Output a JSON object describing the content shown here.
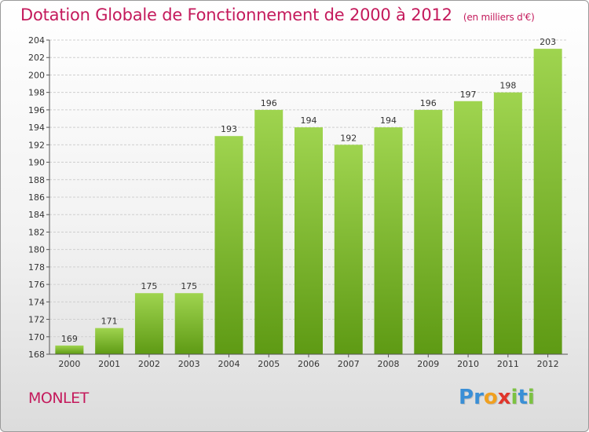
{
  "title": "Dotation Globale de Fonctionnement de 2000 à 2012",
  "unit": "(en milliers d'€)",
  "city": "MONLET",
  "logo": {
    "text": "Proxiti",
    "letters": [
      "P",
      "r",
      "o",
      "x",
      "i",
      "t",
      "i"
    ],
    "colors": [
      "#3a8fd6",
      "#3a8fd6",
      "#f0a020",
      "#e0352b",
      "#7cc242",
      "#3a8fd6",
      "#7cc242"
    ]
  },
  "colors": {
    "title": "#c41a5c",
    "bar_top": "#9fd44f",
    "bar_bottom": "#5e9a14"
  },
  "chart_data": {
    "type": "bar",
    "categories": [
      "2000",
      "2001",
      "2002",
      "2003",
      "2004",
      "2005",
      "2006",
      "2007",
      "2008",
      "2009",
      "2010",
      "2011",
      "2012"
    ],
    "values": [
      169,
      171,
      175,
      175,
      193,
      196,
      194,
      192,
      194,
      196,
      197,
      198,
      203
    ],
    "ylim": [
      168,
      204
    ],
    "yticks": [
      168,
      170,
      172,
      174,
      176,
      178,
      180,
      182,
      184,
      186,
      188,
      190,
      192,
      194,
      196,
      198,
      200,
      202,
      204
    ],
    "grid": true
  }
}
